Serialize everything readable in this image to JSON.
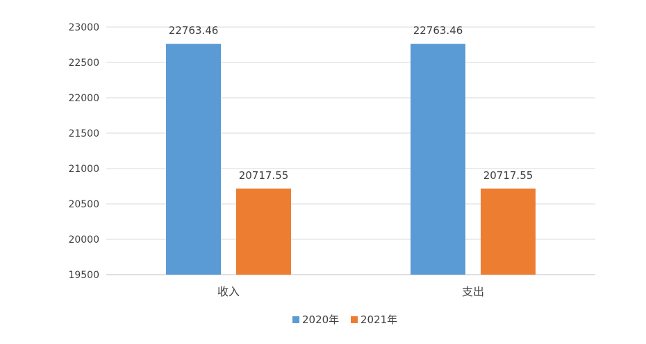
{
  "chart_data": {
    "type": "bar",
    "title": "",
    "xlabel": "",
    "ylabel": "",
    "categories": [
      "收入",
      "支出"
    ],
    "series": [
      {
        "name": "2020年",
        "color": "#5B9BD5",
        "values": [
          22763.46,
          22763.46
        ]
      },
      {
        "name": "2021年",
        "color": "#ED7D31",
        "values": [
          20717.55,
          20717.55
        ]
      }
    ],
    "ylim": [
      19500,
      23000
    ],
    "yticks": [
      19500,
      20000,
      20500,
      21000,
      21500,
      22000,
      22500,
      23000
    ],
    "data_labels": true,
    "grid": true,
    "legend": "bottom"
  }
}
